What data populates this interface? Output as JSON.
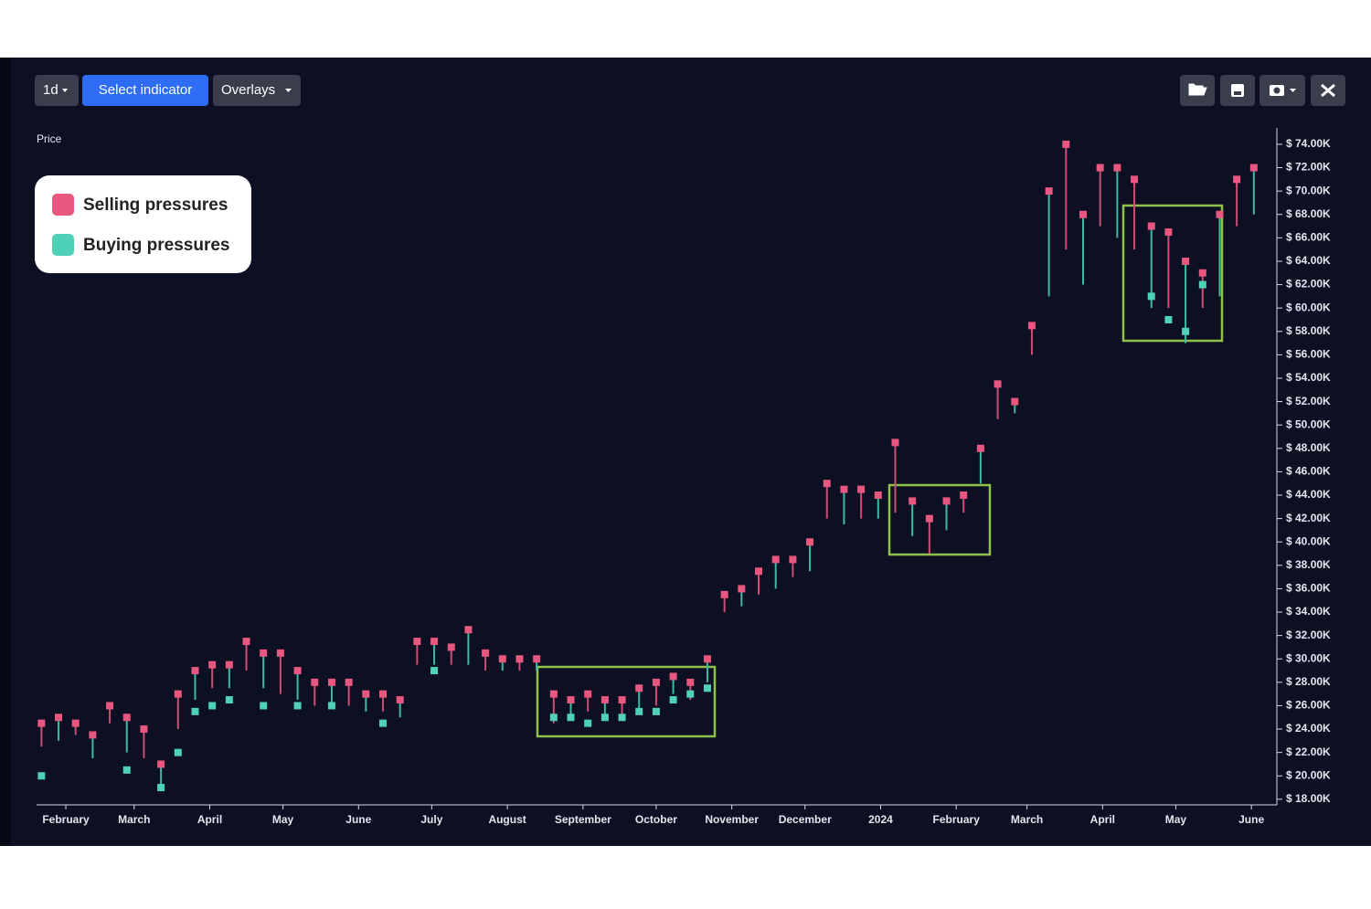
{
  "toolbar": {
    "interval": "1d",
    "indicator": "Select indicator",
    "overlays": "Overlays"
  },
  "chart_data": {
    "type": "range",
    "y_label": "Price",
    "xlim": [
      19,
      525
    ],
    "xticks": [
      {
        "value": 31,
        "label": "February"
      },
      {
        "value": 59,
        "label": "March"
      },
      {
        "value": 90,
        "label": "April"
      },
      {
        "value": 120,
        "label": "May"
      },
      {
        "value": 151,
        "label": "June"
      },
      {
        "value": 181,
        "label": "July"
      },
      {
        "value": 212,
        "label": "August"
      },
      {
        "value": 243,
        "label": "September"
      },
      {
        "value": 273,
        "label": "October"
      },
      {
        "value": 304,
        "label": "November"
      },
      {
        "value": 334,
        "label": "December"
      },
      {
        "value": 365,
        "label": "2024"
      },
      {
        "value": 396,
        "label": "February"
      },
      {
        "value": 425,
        "label": "March"
      },
      {
        "value": 456,
        "label": "April"
      },
      {
        "value": 486,
        "label": "May"
      },
      {
        "value": 517,
        "label": "June"
      }
    ],
    "ylim": [
      17600,
      75400
    ],
    "yticks": [
      {
        "value": 18000,
        "label": "$ 18.00K"
      },
      {
        "value": 20000,
        "label": "$ 20.00K"
      },
      {
        "value": 22000,
        "label": "$ 22.00K"
      },
      {
        "value": 24000,
        "label": "$ 24.00K"
      },
      {
        "value": 26000,
        "label": "$ 26.00K"
      },
      {
        "value": 28000,
        "label": "$ 28.00K"
      },
      {
        "value": 30000,
        "label": "$ 30.00K"
      },
      {
        "value": 32000,
        "label": "$ 32.00K"
      },
      {
        "value": 34000,
        "label": "$ 34.00K"
      },
      {
        "value": 36000,
        "label": "$ 36.00K"
      },
      {
        "value": 38000,
        "label": "$ 38.00K"
      },
      {
        "value": 40000,
        "label": "$ 40.00K"
      },
      {
        "value": 42000,
        "label": "$ 42.00K"
      },
      {
        "value": 44000,
        "label": "$ 44.00K"
      },
      {
        "value": 46000,
        "label": "$ 46.00K"
      },
      {
        "value": 48000,
        "label": "$ 48.00K"
      },
      {
        "value": 50000,
        "label": "$ 50.00K"
      },
      {
        "value": 52000,
        "label": "$ 52.00K"
      },
      {
        "value": 54000,
        "label": "$ 54.00K"
      },
      {
        "value": 56000,
        "label": "$ 56.00K"
      },
      {
        "value": 58000,
        "label": "$ 58.00K"
      },
      {
        "value": 60000,
        "label": "$ 60.00K"
      },
      {
        "value": 62000,
        "label": "$ 62.00K"
      },
      {
        "value": 64000,
        "label": "$ 64.00K"
      },
      {
        "value": 66000,
        "label": "$ 66.00K"
      },
      {
        "value": 68000,
        "label": "$ 68.00K"
      },
      {
        "value": 70000,
        "label": "$ 70.00K"
      },
      {
        "value": 72000,
        "label": "$ 72.00K"
      },
      {
        "value": 74000,
        "label": "$ 74.00K"
      }
    ],
    "x": [
      21,
      28,
      35,
      42,
      49,
      56,
      63,
      70,
      77,
      84,
      91,
      98,
      105,
      112,
      119,
      126,
      133,
      140,
      147,
      154,
      161,
      168,
      175,
      182,
      189,
      196,
      203,
      210,
      217,
      224,
      231,
      238,
      245,
      252,
      259,
      266,
      273,
      280,
      287,
      294,
      301,
      308,
      315,
      322,
      329,
      336,
      343,
      350,
      357,
      364,
      371,
      378,
      385,
      392,
      399,
      406,
      413,
      420,
      427,
      434,
      441,
      448,
      455,
      462,
      469,
      476,
      483,
      490,
      497,
      504,
      511,
      518
    ],
    "low": [
      22500,
      23000,
      23500,
      21500,
      24500,
      22000,
      21500,
      19000,
      24000,
      26500,
      27500,
      27500,
      29000,
      27500,
      27000,
      26500,
      26000,
      26000,
      26000,
      25500,
      25500,
      25000,
      29500,
      29500,
      29500,
      29500,
      29000,
      29000,
      29000,
      29000,
      24500,
      25000,
      25500,
      25000,
      25000,
      25500,
      26000,
      27000,
      26500,
      28000,
      34000,
      34500,
      35500,
      36000,
      37000,
      37500,
      42000,
      41500,
      42000,
      42000,
      42500,
      40500,
      39000,
      41000,
      42500,
      45000,
      50500,
      51000,
      56000,
      61000,
      65000,
      62000,
      67000,
      66000,
      65000,
      60000,
      60000,
      57000,
      60000,
      61000,
      67000,
      68000
    ],
    "series": [
      {
        "name": "Selling pressures",
        "color": "#e8577f",
        "values": [
          24500,
          25000,
          24500,
          23500,
          26000,
          25000,
          24000,
          21000,
          27000,
          29000,
          29500,
          29500,
          31500,
          30500,
          30500,
          29000,
          28000,
          28000,
          28000,
          27000,
          27000,
          26500,
          31500,
          31500,
          31000,
          32500,
          30500,
          30000,
          30000,
          30000,
          27000,
          26500,
          27000,
          26500,
          26500,
          27500,
          28000,
          28500,
          28000,
          30000,
          35500,
          36000,
          37500,
          38500,
          38500,
          40000,
          45000,
          44500,
          44500,
          44000,
          48500,
          43500,
          42000,
          43500,
          44000,
          48000,
          53500,
          52000,
          58500,
          70000,
          74000,
          68000,
          72000,
          72000,
          71000,
          67000,
          66500,
          64000,
          63000,
          68000,
          71000,
          72000
        ]
      },
      {
        "name": "Buying pressures",
        "color": "#4fd1b8",
        "values": [
          20000,
          null,
          null,
          null,
          null,
          20500,
          null,
          19000,
          22000,
          25500,
          26000,
          26500,
          null,
          26000,
          null,
          26000,
          null,
          26000,
          null,
          null,
          24500,
          null,
          null,
          29000,
          null,
          null,
          null,
          null,
          null,
          null,
          25000,
          25000,
          24500,
          25000,
          25000,
          25500,
          25500,
          26500,
          27000,
          27500,
          null,
          null,
          null,
          null,
          null,
          null,
          null,
          null,
          null,
          null,
          null,
          null,
          null,
          null,
          null,
          null,
          null,
          null,
          null,
          null,
          null,
          null,
          null,
          null,
          null,
          61000,
          59000,
          58000,
          62000,
          null,
          null,
          null
        ]
      }
    ]
  }
}
